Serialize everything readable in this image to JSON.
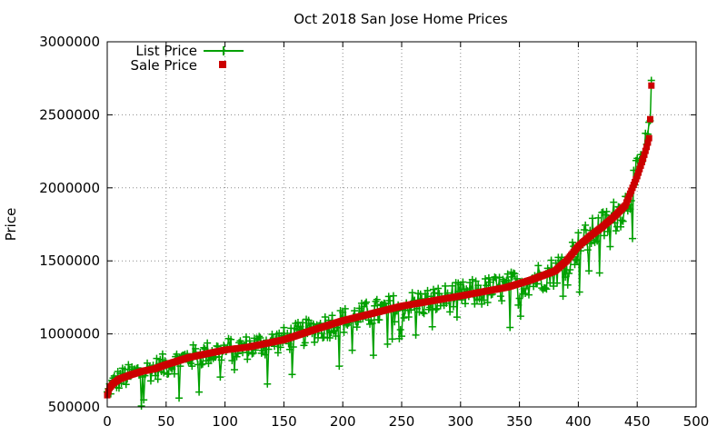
{
  "chart_data": {
    "type": "line",
    "title": "Oct 2018 San Jose Home Prices",
    "xlabel": "",
    "ylabel": "Price",
    "xlim": [
      0,
      500
    ],
    "ylim": [
      500000,
      3000000
    ],
    "x_ticks": [
      0,
      50,
      100,
      150,
      200,
      250,
      300,
      350,
      400,
      450,
      500
    ],
    "y_ticks": [
      500000,
      1000000,
      1500000,
      2000000,
      2500000,
      3000000
    ],
    "x_tick_labels": [
      "0",
      "50",
      "100",
      "150",
      "200",
      "250",
      "300",
      "350",
      "400",
      "450",
      "500"
    ],
    "y_tick_labels": [
      "500000",
      "1000000",
      "1500000",
      "2000000",
      "2500000",
      "3000000"
    ],
    "grid": true,
    "legend_position": "top-left",
    "sale_curve": {
      "x": [
        0,
        2,
        5,
        10,
        20,
        30,
        40,
        50,
        70,
        100,
        120,
        150,
        180,
        200,
        250,
        300,
        340,
        360,
        380,
        390,
        400,
        410,
        420,
        430,
        440,
        445,
        450,
        455,
        458,
        460,
        461,
        462
      ],
      "y": [
        580000,
        630000,
        660000,
        690000,
        720000,
        745000,
        760000,
        790000,
        840000,
        890000,
        910000,
        960000,
        1040000,
        1090000,
        1190000,
        1260000,
        1320000,
        1370000,
        1430000,
        1500000,
        1600000,
        1670000,
        1730000,
        1800000,
        1880000,
        1980000,
        2080000,
        2200000,
        2280000,
        2340000,
        2470000,
        2700000
      ]
    },
    "series": [
      {
        "name": "List Price",
        "color": "#00a000",
        "style": "line with plus markers",
        "noise_amplitude": 90000
      },
      {
        "name": "Sale Price",
        "color": "#cc0000",
        "style": "filled square markers"
      }
    ],
    "n_points": 463
  }
}
